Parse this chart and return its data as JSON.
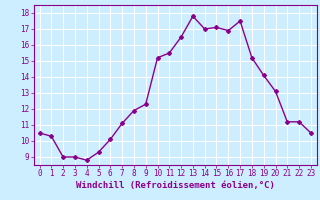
{
  "x": [
    0,
    1,
    2,
    3,
    4,
    5,
    6,
    7,
    8,
    9,
    10,
    11,
    12,
    13,
    14,
    15,
    16,
    17,
    18,
    19,
    20,
    21,
    22,
    23
  ],
  "y": [
    10.5,
    10.3,
    9.0,
    9.0,
    8.8,
    9.3,
    10.1,
    11.1,
    11.9,
    12.3,
    15.2,
    15.5,
    16.5,
    17.8,
    17.0,
    17.1,
    16.9,
    17.5,
    15.2,
    14.1,
    13.1,
    11.2,
    11.2,
    10.5
  ],
  "line_color": "#8B008B",
  "marker": "D",
  "marker_size": 2.0,
  "line_width": 1.0,
  "xlabel": "Windchill (Refroidissement éolien,°C)",
  "xlabel_fontsize": 6.5,
  "ylim": [
    8.5,
    18.5
  ],
  "xlim": [
    -0.5,
    23.5
  ],
  "yticks": [
    9,
    10,
    11,
    12,
    13,
    14,
    15,
    16,
    17,
    18
  ],
  "xticks": [
    0,
    1,
    2,
    3,
    4,
    5,
    6,
    7,
    8,
    9,
    10,
    11,
    12,
    13,
    14,
    15,
    16,
    17,
    18,
    19,
    20,
    21,
    22,
    23
  ],
  "tick_fontsize": 5.5,
  "background_color": "#cceeff",
  "grid_color": "#ffffff",
  "line_color_axis": "#8B008B",
  "spine_color": "#8B008B"
}
